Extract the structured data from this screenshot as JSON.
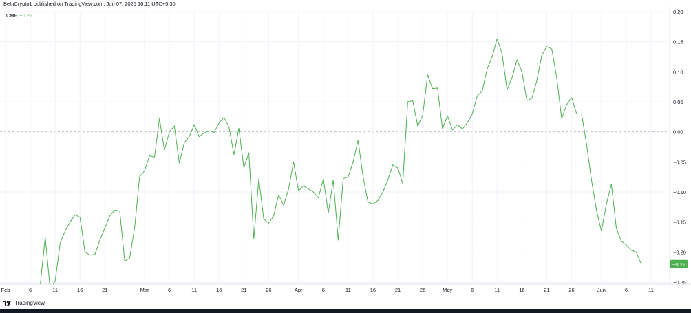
{
  "header": {
    "published": "BeInCrypto1 published on TradingView.com, Jun 07, 2025 16:11 UTC+5:30"
  },
  "legend": {
    "name": "CMF",
    "value": "−0.22"
  },
  "footer": {
    "brand": "TradingView"
  },
  "colors": {
    "line": "#4caf50",
    "badge": "#4caf50",
    "grid": "#f0f3fa",
    "zero_line": "#b2b5be"
  },
  "chart_data": {
    "type": "line",
    "title": "",
    "xlabel": "",
    "ylabel": "",
    "ylim": [
      -0.25,
      0.2
    ],
    "y_ticks": [
      "0.20",
      "0.15",
      "0.10",
      "0.05",
      "0.00",
      "−0.05",
      "−0.10",
      "−0.15",
      "−0.20",
      "−0.25"
    ],
    "y_tick_values": [
      0.2,
      0.15,
      0.1,
      0.05,
      0.0,
      -0.05,
      -0.1,
      -0.15,
      -0.2,
      -0.25
    ],
    "x_range": [
      "2025-02-01",
      "2025-06-11"
    ],
    "x_ticks": [
      {
        "label": "Feb",
        "date": "2025-02-01"
      },
      {
        "label": "6",
        "date": "2025-02-06"
      },
      {
        "label": "11",
        "date": "2025-02-11"
      },
      {
        "label": "16",
        "date": "2025-02-16"
      },
      {
        "label": "21",
        "date": "2025-02-21"
      },
      {
        "label": "Mar",
        "date": "2025-03-01"
      },
      {
        "label": "6",
        "date": "2025-03-06"
      },
      {
        "label": "11",
        "date": "2025-03-11"
      },
      {
        "label": "16",
        "date": "2025-03-16"
      },
      {
        "label": "21",
        "date": "2025-03-21"
      },
      {
        "label": "26",
        "date": "2025-03-26"
      },
      {
        "label": "Apr",
        "date": "2025-04-01"
      },
      {
        "label": "6",
        "date": "2025-04-06"
      },
      {
        "label": "11",
        "date": "2025-04-11"
      },
      {
        "label": "16",
        "date": "2025-04-16"
      },
      {
        "label": "21",
        "date": "2025-04-21"
      },
      {
        "label": "26",
        "date": "2025-04-26"
      },
      {
        "label": "May",
        "date": "2025-05-01"
      },
      {
        "label": "6",
        "date": "2025-05-06"
      },
      {
        "label": "11",
        "date": "2025-05-11"
      },
      {
        "label": "16",
        "date": "2025-05-16"
      },
      {
        "label": "21",
        "date": "2025-05-21"
      },
      {
        "label": "26",
        "date": "2025-05-26"
      },
      {
        "label": "Jun",
        "date": "2025-06-01"
      },
      {
        "label": "6",
        "date": "2025-06-06"
      },
      {
        "label": "11",
        "date": "2025-06-11"
      }
    ],
    "grid": true,
    "series": [
      {
        "name": "CMF",
        "last_value_label": "−0.22",
        "points": [
          [
            "2025-02-08",
            -0.255
          ],
          [
            "2025-02-09",
            -0.175
          ],
          [
            "2025-02-10",
            -0.262
          ],
          [
            "2025-02-11",
            -0.248
          ],
          [
            "2025-02-12",
            -0.185
          ],
          [
            "2025-02-13",
            -0.165
          ],
          [
            "2025-02-14",
            -0.15
          ],
          [
            "2025-02-15",
            -0.138
          ],
          [
            "2025-02-16",
            -0.142
          ],
          [
            "2025-02-17",
            -0.2
          ],
          [
            "2025-02-18",
            -0.205
          ],
          [
            "2025-02-19",
            -0.204
          ],
          [
            "2025-02-20",
            -0.18
          ],
          [
            "2025-02-21",
            -0.16
          ],
          [
            "2025-02-22",
            -0.14
          ],
          [
            "2025-02-23",
            -0.13
          ],
          [
            "2025-02-24",
            -0.132
          ],
          [
            "2025-02-25",
            -0.215
          ],
          [
            "2025-02-26",
            -0.21
          ],
          [
            "2025-02-27",
            -0.16
          ],
          [
            "2025-02-28",
            -0.075
          ],
          [
            "2025-03-01",
            -0.065
          ],
          [
            "2025-03-02",
            -0.04
          ],
          [
            "2025-03-03",
            -0.042
          ],
          [
            "2025-03-04",
            0.022
          ],
          [
            "2025-03-05",
            -0.03
          ],
          [
            "2025-03-06",
            0.0
          ],
          [
            "2025-03-07",
            0.01
          ],
          [
            "2025-03-08",
            -0.052
          ],
          [
            "2025-03-09",
            -0.018
          ],
          [
            "2025-03-10",
            -0.008
          ],
          [
            "2025-03-11",
            0.012
          ],
          [
            "2025-03-12",
            -0.008
          ],
          [
            "2025-03-13",
            -0.002
          ],
          [
            "2025-03-14",
            0.002
          ],
          [
            "2025-03-15",
            -0.001
          ],
          [
            "2025-03-16",
            0.015
          ],
          [
            "2025-03-17",
            0.024
          ],
          [
            "2025-03-18",
            0.008
          ],
          [
            "2025-03-19",
            -0.038
          ],
          [
            "2025-03-20",
            0.006
          ],
          [
            "2025-03-21",
            -0.06
          ],
          [
            "2025-03-22",
            -0.035
          ],
          [
            "2025-03-23",
            -0.178
          ],
          [
            "2025-03-24",
            -0.078
          ],
          [
            "2025-03-25",
            -0.145
          ],
          [
            "2025-03-26",
            -0.152
          ],
          [
            "2025-03-27",
            -0.14
          ],
          [
            "2025-03-28",
            -0.105
          ],
          [
            "2025-03-29",
            -0.122
          ],
          [
            "2025-03-30",
            -0.095
          ],
          [
            "2025-03-31",
            -0.05
          ],
          [
            "2025-04-01",
            -0.098
          ],
          [
            "2025-04-02",
            -0.09
          ],
          [
            "2025-04-03",
            -0.095
          ],
          [
            "2025-04-04",
            -0.1
          ],
          [
            "2025-04-05",
            -0.11
          ],
          [
            "2025-04-06",
            -0.078
          ],
          [
            "2025-04-07",
            -0.135
          ],
          [
            "2025-04-08",
            -0.08
          ],
          [
            "2025-04-09",
            -0.18
          ],
          [
            "2025-04-10",
            -0.078
          ],
          [
            "2025-04-11",
            -0.075
          ],
          [
            "2025-04-12",
            -0.05
          ],
          [
            "2025-04-13",
            -0.014
          ],
          [
            "2025-04-14",
            -0.075
          ],
          [
            "2025-04-15",
            -0.117
          ],
          [
            "2025-04-16",
            -0.12
          ],
          [
            "2025-04-17",
            -0.114
          ],
          [
            "2025-04-18",
            -0.1
          ],
          [
            "2025-04-19",
            -0.08
          ],
          [
            "2025-04-20",
            -0.055
          ],
          [
            "2025-04-21",
            -0.06
          ],
          [
            "2025-04-22",
            -0.086
          ],
          [
            "2025-04-23",
            0.05
          ],
          [
            "2025-04-24",
            0.052
          ],
          [
            "2025-04-25",
            0.01
          ],
          [
            "2025-04-26",
            0.027
          ],
          [
            "2025-04-27",
            0.095
          ],
          [
            "2025-04-28",
            0.072
          ],
          [
            "2025-04-29",
            0.073
          ],
          [
            "2025-04-30",
            0.005
          ],
          [
            "2025-05-01",
            0.027
          ],
          [
            "2025-05-02",
            0.003
          ],
          [
            "2025-05-03",
            0.012
          ],
          [
            "2025-05-04",
            0.005
          ],
          [
            "2025-05-05",
            0.015
          ],
          [
            "2025-05-06",
            0.03
          ],
          [
            "2025-05-07",
            0.06
          ],
          [
            "2025-05-08",
            0.068
          ],
          [
            "2025-05-09",
            0.105
          ],
          [
            "2025-05-10",
            0.125
          ],
          [
            "2025-05-11",
            0.155
          ],
          [
            "2025-05-12",
            0.13
          ],
          [
            "2025-05-13",
            0.07
          ],
          [
            "2025-05-14",
            0.09
          ],
          [
            "2025-05-15",
            0.12
          ],
          [
            "2025-05-16",
            0.1
          ],
          [
            "2025-05-17",
            0.052
          ],
          [
            "2025-05-18",
            0.056
          ],
          [
            "2025-05-19",
            0.085
          ],
          [
            "2025-05-20",
            0.128
          ],
          [
            "2025-05-21",
            0.142
          ],
          [
            "2025-05-22",
            0.138
          ],
          [
            "2025-05-23",
            0.09
          ],
          [
            "2025-05-24",
            0.022
          ],
          [
            "2025-05-25",
            0.045
          ],
          [
            "2025-05-26",
            0.057
          ],
          [
            "2025-05-27",
            0.03
          ],
          [
            "2025-05-28",
            0.03
          ],
          [
            "2025-05-29",
            -0.02
          ],
          [
            "2025-05-30",
            -0.08
          ],
          [
            "2025-05-31",
            -0.13
          ],
          [
            "2025-06-01",
            -0.165
          ],
          [
            "2025-06-02",
            -0.12
          ],
          [
            "2025-06-03",
            -0.087
          ],
          [
            "2025-06-04",
            -0.16
          ],
          [
            "2025-06-05",
            -0.182
          ],
          [
            "2025-06-06",
            -0.188
          ],
          [
            "2025-06-07",
            -0.197
          ],
          [
            "2025-06-08",
            -0.2
          ],
          [
            "2025-06-09",
            -0.22
          ]
        ]
      }
    ]
  }
}
